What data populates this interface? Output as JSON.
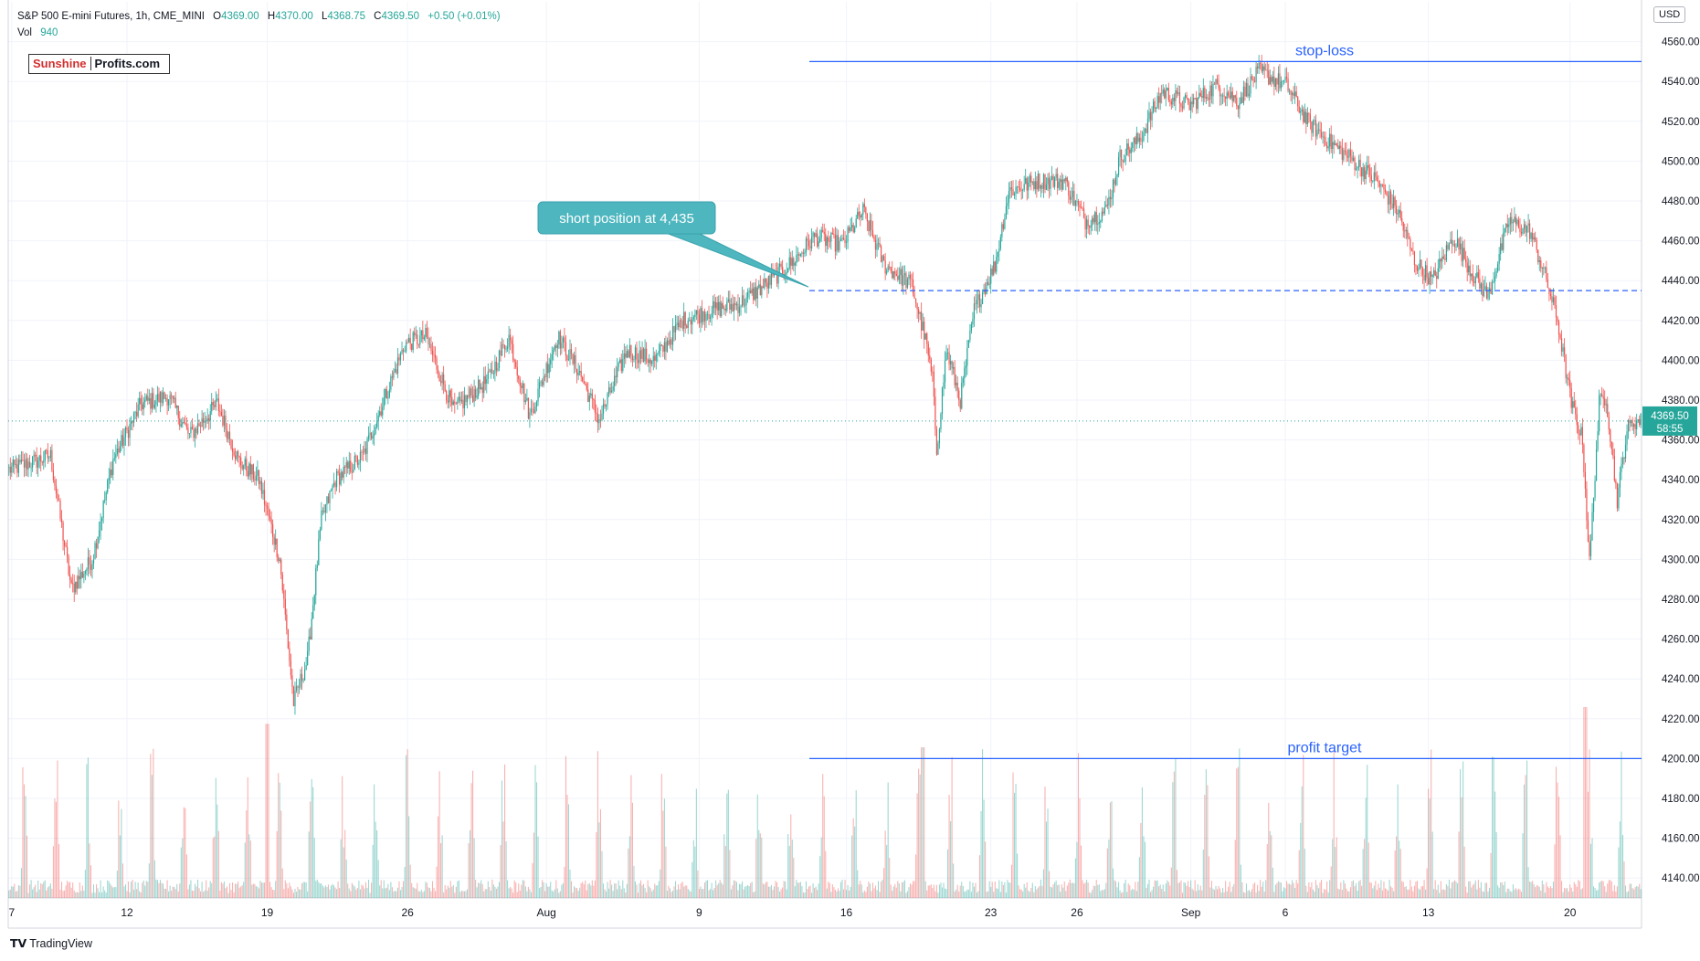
{
  "header": {
    "title": "S&P 500 E-mini Futures, 1h, CME_MINI",
    "open_label": "O",
    "open": "4369.00",
    "high_label": "H",
    "high": "4370.00",
    "low_label": "L",
    "low": "4368.75",
    "close_label": "C",
    "close": "4369.50",
    "change": "+0.50 (+0.01%)",
    "vol_label": "Vol",
    "vol": "940"
  },
  "logo": {
    "part1": "Sunshine",
    "part2": "Profits.com"
  },
  "currency": "USD",
  "brand": "TradingView",
  "colors": {
    "up": "#26a69a",
    "down": "#ef5350",
    "line": "#2962ff",
    "callout": "#4db6bf"
  },
  "chart_data": {
    "type": "candlestick",
    "title": "S&P 500 E-mini Futures, 1h, CME_MINI",
    "ylim": [
      4130,
      4580
    ],
    "y_ticks": [
      4140,
      4160,
      4180,
      4200,
      4220,
      4240,
      4260,
      4280,
      4300,
      4320,
      4340,
      4360,
      4380,
      4400,
      4420,
      4440,
      4460,
      4480,
      4500,
      4520,
      4540,
      4560
    ],
    "x_ticks": [
      {
        "label": "7",
        "i": 2
      },
      {
        "label": "12",
        "i": 85
      },
      {
        "label": "19",
        "i": 186
      },
      {
        "label": "26",
        "i": 287
      },
      {
        "label": "Aug",
        "i": 387
      },
      {
        "label": "9",
        "i": 497
      },
      {
        "label": "16",
        "i": 603
      },
      {
        "label": "23",
        "i": 707
      },
      {
        "label": "26",
        "i": 769
      },
      {
        "label": "Sep",
        "i": 851
      },
      {
        "label": "6",
        "i": 919
      },
      {
        "label": "13",
        "i": 1022
      },
      {
        "label": "20",
        "i": 1124
      }
    ],
    "n_bars": 1176,
    "price_path": [
      [
        0,
        4345
      ],
      [
        30,
        4352
      ],
      [
        45,
        4285
      ],
      [
        60,
        4300
      ],
      [
        75,
        4350
      ],
      [
        95,
        4378
      ],
      [
        115,
        4382
      ],
      [
        130,
        4362
      ],
      [
        150,
        4378
      ],
      [
        165,
        4350
      ],
      [
        180,
        4340
      ],
      [
        195,
        4300
      ],
      [
        205,
        4228
      ],
      [
        215,
        4250
      ],
      [
        225,
        4320
      ],
      [
        235,
        4340
      ],
      [
        255,
        4352
      ],
      [
        270,
        4380
      ],
      [
        285,
        4408
      ],
      [
        300,
        4412
      ],
      [
        320,
        4375
      ],
      [
        345,
        4390
      ],
      [
        360,
        4412
      ],
      [
        375,
        4372
      ],
      [
        395,
        4412
      ],
      [
        410,
        4395
      ],
      [
        425,
        4370
      ],
      [
        445,
        4405
      ],
      [
        465,
        4400
      ],
      [
        485,
        4420
      ],
      [
        505,
        4425
      ],
      [
        525,
        4428
      ],
      [
        545,
        4438
      ],
      [
        565,
        4450
      ],
      [
        580,
        4462
      ],
      [
        600,
        4458
      ],
      [
        615,
        4475
      ],
      [
        630,
        4448
      ],
      [
        650,
        4438
      ],
      [
        660,
        4410
      ],
      [
        665,
        4390
      ],
      [
        668,
        4355
      ],
      [
        675,
        4405
      ],
      [
        685,
        4380
      ],
      [
        695,
        4425
      ],
      [
        710,
        4448
      ],
      [
        720,
        4485
      ],
      [
        740,
        4490
      ],
      [
        760,
        4490
      ],
      [
        775,
        4470
      ],
      [
        790,
        4475
      ],
      [
        800,
        4502
      ],
      [
        815,
        4512
      ],
      [
        830,
        4535
      ],
      [
        850,
        4528
      ],
      [
        870,
        4538
      ],
      [
        885,
        4530
      ],
      [
        900,
        4545
      ],
      [
        920,
        4538
      ],
      [
        935,
        4520
      ],
      [
        950,
        4510
      ],
      [
        965,
        4502
      ],
      [
        985,
        4490
      ],
      [
        1000,
        4475
      ],
      [
        1012,
        4450
      ],
      [
        1025,
        4440
      ],
      [
        1040,
        4462
      ],
      [
        1055,
        4442
      ],
      [
        1065,
        4432
      ],
      [
        1080,
        4470
      ],
      [
        1095,
        4465
      ],
      [
        1105,
        4445
      ],
      [
        1115,
        4420
      ],
      [
        1125,
        4378
      ],
      [
        1133,
        4360
      ],
      [
        1138,
        4298
      ],
      [
        1145,
        4378
      ],
      [
        1150,
        4382
      ],
      [
        1158,
        4330
      ],
      [
        1165,
        4365
      ],
      [
        1170,
        4369.5
      ]
    ],
    "volume_scale_max": 60000,
    "volume_note_peaks": [
      [
        186,
        52000
      ],
      [
        658,
        45000
      ],
      [
        1135,
        57000
      ]
    ],
    "current_price": 4369.5,
    "current_price_label": "4369.50",
    "countdown": "58:55",
    "annotations": {
      "stop_loss": {
        "label": "stop-loss",
        "price": 4550
      },
      "entry": {
        "price": 4435
      },
      "profit_target": {
        "label": "profit target",
        "price": 4200
      },
      "callout": {
        "label": "short position at 4,435",
        "anchor_i": 553
      }
    }
  }
}
